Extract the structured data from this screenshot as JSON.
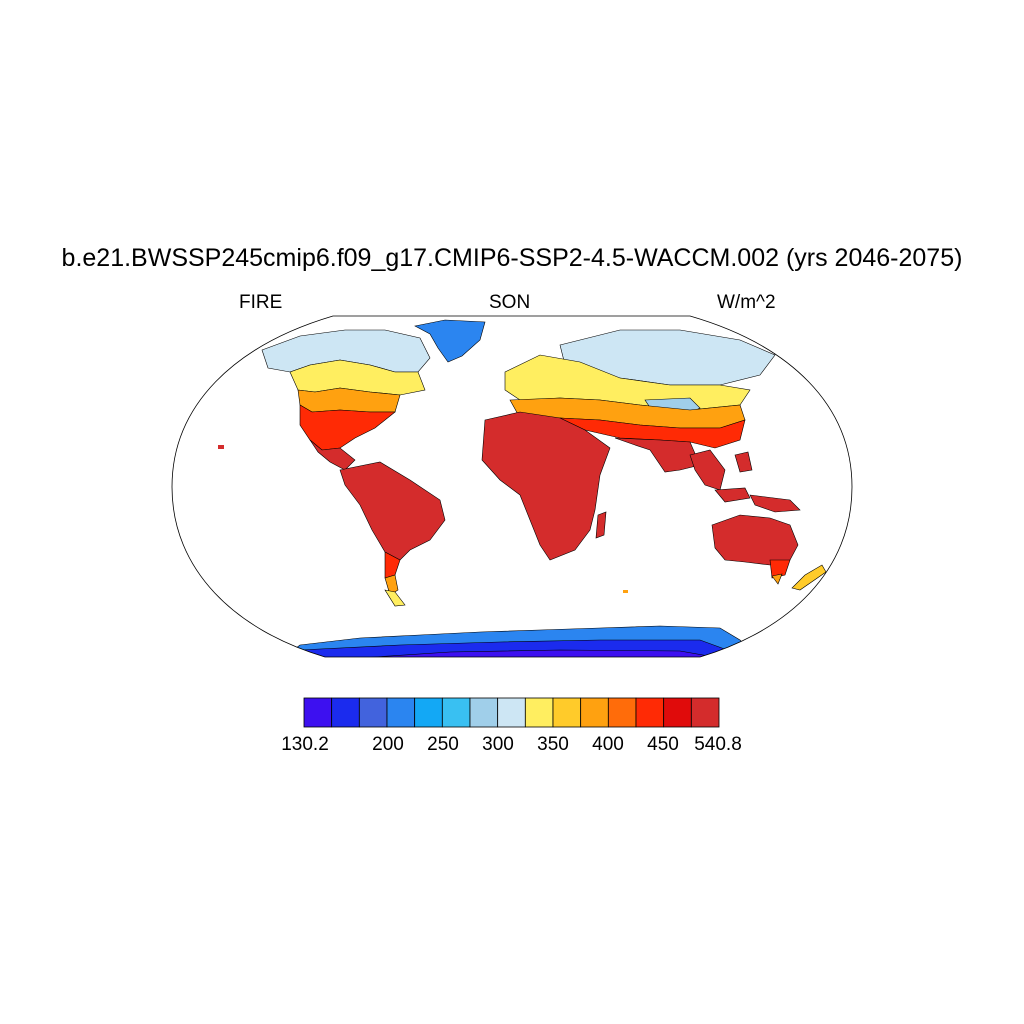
{
  "title": "b.e21.BWSSP245cmip6.f09_g17.CMIP6-SSP2-4.5-WACCM.002 (yrs 2046-2075)",
  "subtitle": {
    "left": "FIRE",
    "center": "SON",
    "right": "W/m^2"
  },
  "colorbar": {
    "colors": [
      "#3d10f0",
      "#1b2bee",
      "#4263dd",
      "#2b85f0",
      "#13a8f5",
      "#39c0f2",
      "#a0cfea",
      "#cde6f4",
      "#ffee60",
      "#ffcb2a",
      "#ffa110",
      "#ff6c0a",
      "#ff2a05",
      "#e00b0b",
      "#d42c2c"
    ],
    "labels": [
      "130.2",
      "200",
      "250",
      "300",
      "350",
      "400",
      "450",
      "540.8"
    ]
  }
}
